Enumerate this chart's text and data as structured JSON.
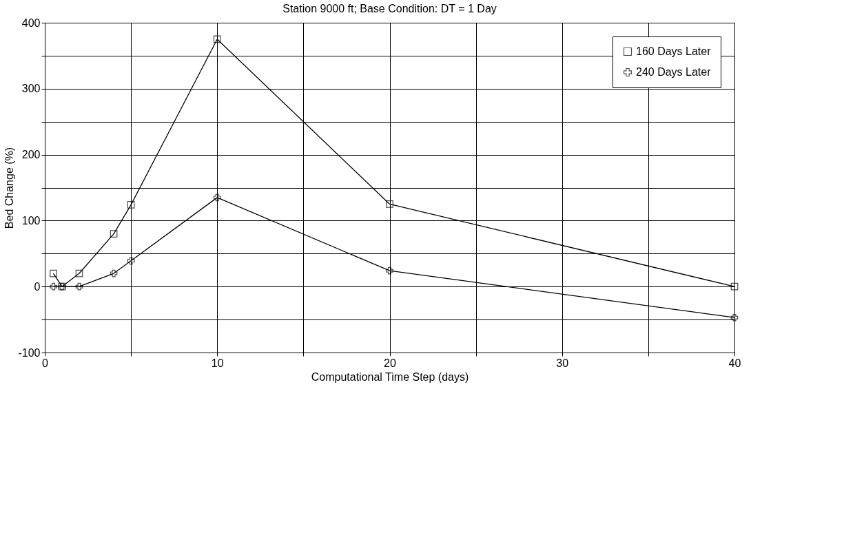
{
  "chart_data": {
    "type": "line",
    "title": "Station 9000 ft; Base Condition: DT =  1 Day",
    "xlabel": "Computational Time Step (days)",
    "ylabel": "Bed Change (%)",
    "x": [
      0.5,
      1,
      2,
      4,
      5,
      10,
      20,
      40
    ],
    "series": [
      {
        "name": "160 Days Later",
        "color": "#000000",
        "marker": "square",
        "values": [
          20,
          0,
          20,
          80,
          124,
          375,
          125,
          0
        ]
      },
      {
        "name": "240 Days Later",
        "color": "#000000",
        "marker": "cross",
        "values": [
          0,
          0,
          0,
          20,
          39,
          135,
          24,
          -47
        ]
      }
    ],
    "xlim": [
      0,
      40
    ],
    "xticks": [
      0,
      {
        "value": 5,
        "label": null
      },
      10,
      {
        "value": 15,
        "label": null
      },
      20,
      {
        "value": 25,
        "label": null
      },
      30,
      {
        "value": 35,
        "label": null
      },
      40
    ],
    "ylim": [
      -100,
      400
    ],
    "yticks": [
      -100,
      {
        "value": -50,
        "label": null
      },
      0,
      {
        "value": 50,
        "label": null
      },
      100,
      {
        "value": 150,
        "label": null
      },
      200,
      {
        "value": 250,
        "label": null
      },
      300,
      {
        "value": 350,
        "label": null
      },
      400
    ],
    "grid": true,
    "legend": "top right",
    "line_style": "solid"
  }
}
